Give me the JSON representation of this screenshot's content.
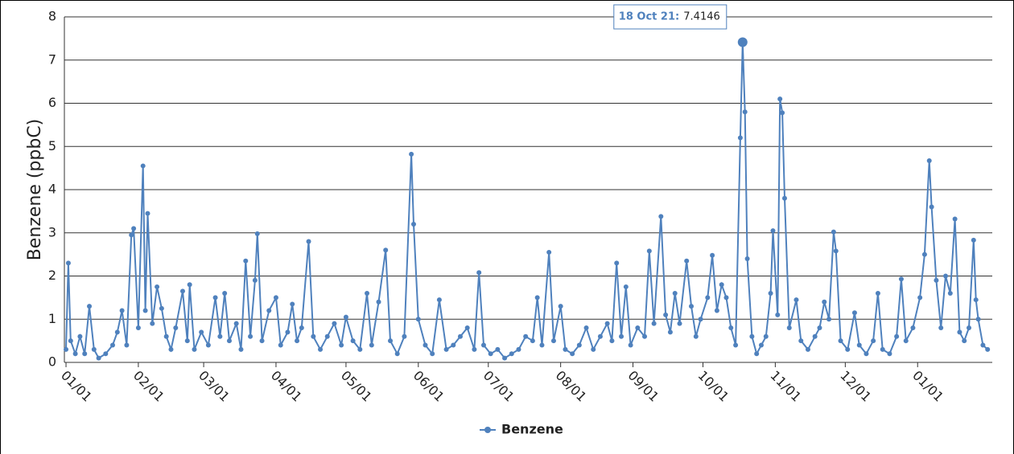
{
  "chart_data": {
    "type": "line",
    "y_label": "Benzene (ppbC)",
    "series": [
      {
        "name": "Benzene",
        "color": "#4f81bd",
        "x": [
          0,
          1,
          2,
          4,
          6,
          8,
          10,
          12,
          14,
          17,
          20,
          22,
          24,
          26,
          28,
          29,
          31,
          33,
          34,
          35,
          37,
          39,
          41,
          43,
          45,
          47,
          50,
          52,
          53,
          55,
          58,
          61,
          64,
          66,
          68,
          70,
          73,
          75,
          77,
          79,
          81,
          82,
          84,
          87,
          90,
          92,
          95,
          97,
          99,
          101,
          104,
          106,
          109,
          112,
          115,
          118,
          120,
          123,
          126,
          129,
          131,
          134,
          137,
          139,
          142,
          145,
          148,
          149,
          151,
          154,
          157,
          160,
          163,
          166,
          169,
          172,
          175,
          177,
          179,
          182,
          185,
          188,
          191,
          194,
          197,
          200,
          202,
          204,
          207,
          209,
          212,
          214,
          217,
          220,
          223,
          226,
          229,
          232,
          234,
          236,
          238,
          240,
          242,
          245,
          248,
          250,
          252,
          255,
          257,
          259,
          261,
          263,
          266,
          268,
          270,
          272,
          275,
          277,
          279,
          281,
          283,
          285,
          287,
          289,
          290,
          291,
          292,
          294,
          296,
          298,
          300,
          302,
          303,
          305,
          306,
          307,
          308,
          310,
          313,
          315,
          318,
          321,
          323,
          325,
          327,
          329,
          330,
          332,
          335,
          338,
          340,
          343,
          346,
          348,
          350,
          353,
          356,
          358,
          360,
          363,
          366,
          368,
          370,
          371,
          373,
          375,
          377,
          379,
          381,
          383,
          385,
          387,
          389,
          390,
          391,
          393,
          395
        ],
        "values": [
          0.3,
          2.3,
          0.5,
          0.2,
          0.6,
          0.2,
          1.3,
          0.3,
          0.1,
          0.2,
          0.4,
          0.7,
          1.2,
          0.4,
          2.95,
          3.1,
          0.8,
          4.55,
          1.2,
          3.45,
          0.9,
          1.75,
          1.25,
          0.6,
          0.3,
          0.8,
          1.65,
          0.5,
          1.8,
          0.3,
          0.7,
          0.4,
          1.5,
          0.6,
          1.6,
          0.5,
          0.9,
          0.3,
          2.35,
          0.6,
          1.9,
          2.98,
          0.5,
          1.2,
          1.5,
          0.4,
          0.7,
          1.35,
          0.5,
          0.8,
          2.8,
          0.6,
          0.3,
          0.6,
          0.9,
          0.4,
          1.05,
          0.5,
          0.3,
          1.6,
          0.4,
          1.4,
          2.6,
          0.5,
          0.2,
          0.6,
          4.82,
          3.2,
          1.0,
          0.4,
          0.2,
          1.45,
          0.3,
          0.4,
          0.6,
          0.8,
          0.3,
          2.08,
          0.4,
          0.2,
          0.3,
          0.1,
          0.2,
          0.3,
          0.6,
          0.5,
          1.5,
          0.4,
          2.55,
          0.5,
          1.3,
          0.3,
          0.2,
          0.4,
          0.8,
          0.3,
          0.6,
          0.9,
          0.5,
          2.3,
          0.6,
          1.75,
          0.4,
          0.8,
          0.6,
          2.58,
          0.9,
          3.38,
          1.1,
          0.7,
          1.6,
          0.9,
          2.35,
          1.3,
          0.6,
          1.0,
          1.5,
          2.48,
          1.2,
          1.8,
          1.5,
          0.8,
          0.4,
          5.2,
          7.4146,
          5.8,
          2.4,
          0.6,
          0.2,
          0.4,
          0.6,
          1.6,
          3.05,
          1.1,
          6.1,
          5.78,
          3.8,
          0.8,
          1.45,
          0.5,
          0.3,
          0.6,
          0.8,
          1.4,
          1.0,
          3.02,
          2.58,
          0.5,
          0.3,
          1.15,
          0.4,
          0.2,
          0.5,
          1.6,
          0.3,
          0.2,
          0.6,
          1.93,
          0.5,
          0.8,
          1.5,
          2.5,
          4.67,
          3.6,
          1.9,
          0.8,
          2.0,
          1.6,
          3.32,
          0.7,
          0.5,
          0.8,
          2.83,
          1.45,
          1.0,
          0.4,
          0.3
        ]
      }
    ],
    "xlim": [
      -0.7,
      397
    ],
    "xticks": [
      {
        "value": 0,
        "label": "01/01"
      },
      {
        "value": 31,
        "label": "02/01"
      },
      {
        "value": 59,
        "label": "03/01"
      },
      {
        "value": 90,
        "label": "04/01"
      },
      {
        "value": 120,
        "label": "05/01"
      },
      {
        "value": 151,
        "label": "06/01"
      },
      {
        "value": 181,
        "label": "07/01"
      },
      {
        "value": 212,
        "label": "08/01"
      },
      {
        "value": 243,
        "label": "09/01"
      },
      {
        "value": 273,
        "label": "10/01"
      },
      {
        "value": 304,
        "label": "11/01"
      },
      {
        "value": 334,
        "label": "12/01"
      },
      {
        "value": 365,
        "label": "01/01"
      }
    ],
    "ylim": [
      0,
      8
    ],
    "yticks": [
      0,
      1,
      2,
      3,
      4,
      5,
      6,
      7,
      8
    ],
    "grid": true,
    "tooltip": {
      "date": "18 Oct 21:",
      "value": 7.4146
    },
    "legend": "bottom"
  }
}
